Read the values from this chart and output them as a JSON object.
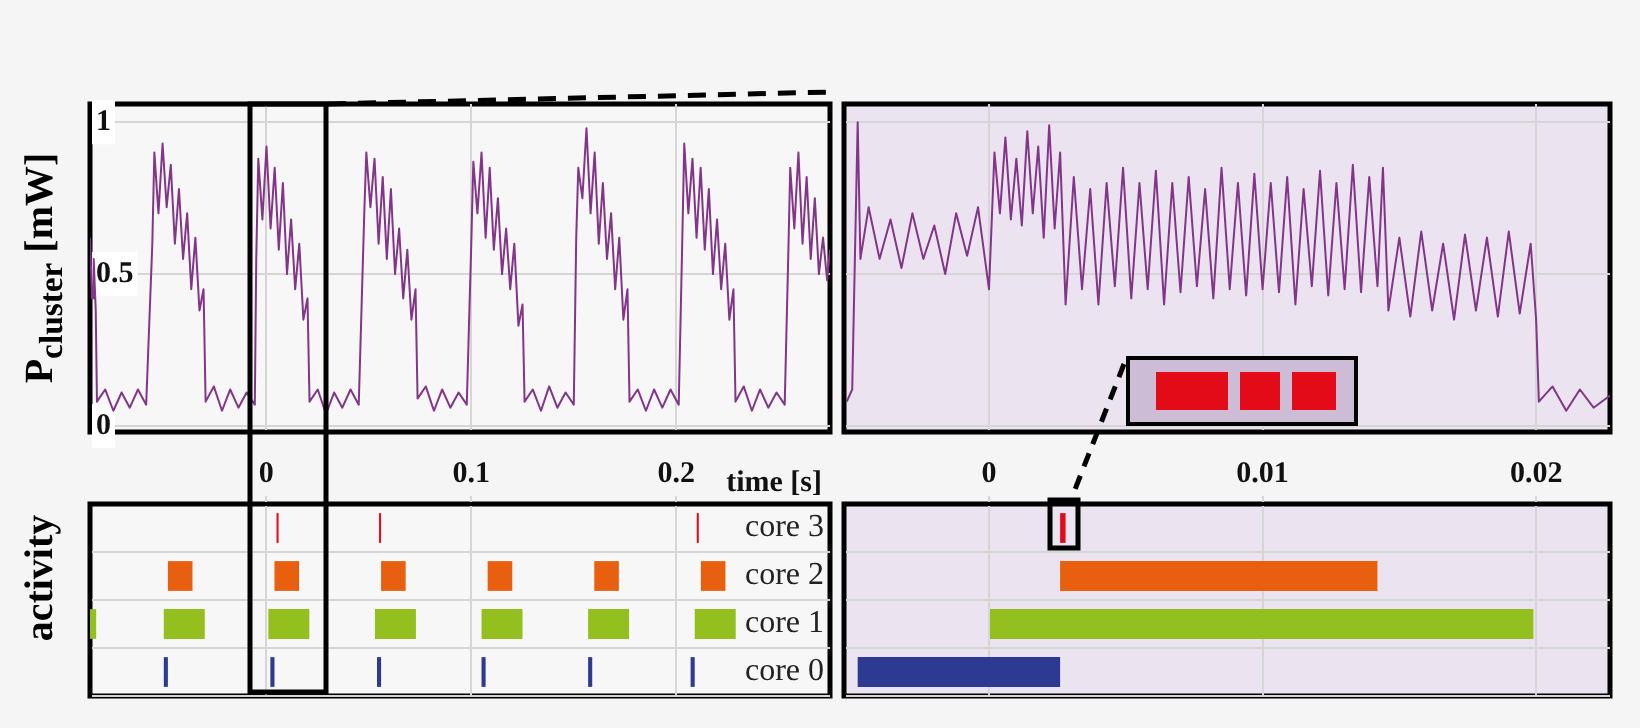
{
  "chart_data": [
    {
      "type": "line",
      "ylabel": "P$_{cluster}$ [mW]",
      "xlim": [
        -0.086,
        0.275
      ],
      "xticks": [
        0,
        0.1,
        0.2
      ],
      "ylim": [
        -0.02,
        1.06
      ],
      "yticks": [
        0,
        0.5,
        1
      ],
      "grid": true,
      "tick_labels": "y",
      "series": [
        {
          "color": "#833589",
          "x": [
            -0.086,
            -0.085,
            -0.0842,
            -0.0832,
            -0.0826,
            -0.0786,
            -0.0746,
            -0.0706,
            -0.0666,
            -0.0626,
            -0.0586,
            -0.0556,
            -0.0546,
            -0.0526,
            -0.0506,
            -0.0486,
            -0.0466,
            -0.0446,
            -0.0426,
            -0.0406,
            -0.0386,
            -0.0366,
            -0.0346,
            -0.0326,
            -0.0306,
            -0.0296,
            -0.0256,
            -0.0216,
            -0.0176,
            -0.0136,
            -0.0096,
            -0.0056,
            -0.0049,
            -0.0039,
            -0.0019,
            0.0001,
            0.0021,
            0.0041,
            0.0061,
            0.0081,
            0.0101,
            0.0121,
            0.0141,
            0.0161,
            0.0181,
            0.0201,
            0.0211,
            0.0251,
            0.0291,
            0.0331,
            0.0371,
            0.0411,
            0.0451,
            0.0478,
            0.0488,
            0.0508,
            0.0528,
            0.0548,
            0.0568,
            0.0588,
            0.0608,
            0.0628,
            0.0648,
            0.0668,
            0.0688,
            0.0708,
            0.0728,
            0.0738,
            0.0778,
            0.0818,
            0.0858,
            0.0898,
            0.0938,
            0.0978,
            0.1,
            0.101,
            0.103,
            0.105,
            0.107,
            0.109,
            0.111,
            0.113,
            0.115,
            0.117,
            0.119,
            0.121,
            0.123,
            0.125,
            0.126,
            0.13,
            0.134,
            0.138,
            0.142,
            0.146,
            0.15,
            0.1512,
            0.1522,
            0.1542,
            0.1562,
            0.1582,
            0.1602,
            0.1622,
            0.1642,
            0.1662,
            0.1682,
            0.1702,
            0.1722,
            0.1742,
            0.1762,
            0.1772,
            0.1812,
            0.1852,
            0.1892,
            0.1932,
            0.1972,
            0.2012,
            0.2029,
            0.2039,
            0.2059,
            0.2079,
            0.2099,
            0.2119,
            0.2139,
            0.2159,
            0.2179,
            0.2199,
            0.2219,
            0.2239,
            0.2259,
            0.2279,
            0.2289,
            0.2329,
            0.2369,
            0.2409,
            0.2449,
            0.2489,
            0.2529,
            0.2546,
            0.2556,
            0.2576,
            0.2596,
            0.2616,
            0.2636,
            0.2656,
            0.2676,
            0.2696,
            0.2716,
            0.2736,
            0.275
          ],
          "values": [
            0.62,
            0.42,
            0.55,
            0.38,
            0.08,
            0.12,
            0.05,
            0.11,
            0.06,
            0.12,
            0.07,
            0.6,
            0.9,
            0.7,
            0.93,
            0.72,
            0.86,
            0.6,
            0.78,
            0.55,
            0.7,
            0.45,
            0.62,
            0.38,
            0.45,
            0.08,
            0.13,
            0.05,
            0.12,
            0.06,
            0.11,
            0.07,
            0.55,
            0.88,
            0.68,
            0.92,
            0.65,
            0.85,
            0.58,
            0.8,
            0.5,
            0.68,
            0.45,
            0.6,
            0.35,
            0.42,
            0.08,
            0.12,
            0.04,
            0.11,
            0.06,
            0.12,
            0.07,
            0.7,
            0.9,
            0.72,
            0.88,
            0.6,
            0.82,
            0.55,
            0.78,
            0.5,
            0.65,
            0.42,
            0.58,
            0.35,
            0.45,
            0.09,
            0.13,
            0.05,
            0.12,
            0.06,
            0.11,
            0.07,
            0.6,
            0.87,
            0.7,
            0.9,
            0.62,
            0.85,
            0.58,
            0.75,
            0.5,
            0.65,
            0.45,
            0.6,
            0.33,
            0.4,
            0.08,
            0.12,
            0.05,
            0.13,
            0.06,
            0.11,
            0.07,
            0.62,
            0.85,
            0.75,
            0.98,
            0.7,
            0.9,
            0.6,
            0.8,
            0.55,
            0.7,
            0.45,
            0.62,
            0.35,
            0.45,
            0.08,
            0.12,
            0.05,
            0.12,
            0.06,
            0.12,
            0.07,
            0.6,
            0.93,
            0.7,
            0.88,
            0.62,
            0.85,
            0.58,
            0.78,
            0.5,
            0.68,
            0.45,
            0.6,
            0.35,
            0.45,
            0.08,
            0.13,
            0.05,
            0.12,
            0.06,
            0.11,
            0.07,
            0.55,
            0.85,
            0.65,
            0.9,
            0.6,
            0.82,
            0.55,
            0.75,
            0.5,
            0.62,
            0.48,
            0.58
          ]
        }
      ]
    },
    {
      "type": "line",
      "xlim": [
        -0.0053,
        0.0227
      ],
      "xticks": [
        0,
        0.01,
        0.02
      ],
      "ylim": [
        -0.02,
        1.06
      ],
      "yticks": [
        0,
        0.5,
        1
      ],
      "grid": true,
      "tick_labels": false,
      "series": [
        {
          "color": "#833589",
          "x": [
            -0.0052,
            -0.005,
            -0.0048,
            -0.0047,
            -0.0044,
            -0.004,
            -0.0036,
            -0.0032,
            -0.0028,
            -0.0024,
            -0.002,
            -0.0016,
            -0.0012,
            -0.0008,
            -0.0004,
            0,
            0.0002,
            0.0004,
            0.0006,
            0.0008,
            0.001,
            0.0012,
            0.0014,
            0.0016,
            0.0018,
            0.002,
            0.0022,
            0.0024,
            0.0026,
            0.0028,
            0.0031,
            0.0034,
            0.0037,
            0.004,
            0.0043,
            0.0046,
            0.0049,
            0.0052,
            0.0055,
            0.0058,
            0.0061,
            0.0064,
            0.0067,
            0.007,
            0.0073,
            0.0076,
            0.0079,
            0.0082,
            0.0085,
            0.0088,
            0.0091,
            0.0094,
            0.0097,
            0.01,
            0.0103,
            0.0106,
            0.0109,
            0.0112,
            0.0115,
            0.0118,
            0.0121,
            0.0124,
            0.0127,
            0.013,
            0.0133,
            0.0136,
            0.0139,
            0.0142,
            0.0144,
            0.0146,
            0.015,
            0.0154,
            0.0158,
            0.0162,
            0.0166,
            0.017,
            0.0174,
            0.0178,
            0.0182,
            0.0186,
            0.019,
            0.0194,
            0.0198,
            0.02,
            0.0201,
            0.0206,
            0.0211,
            0.0216,
            0.0221,
            0.0227
          ],
          "values": [
            0.08,
            0.12,
            1.0,
            0.55,
            0.72,
            0.55,
            0.68,
            0.52,
            0.7,
            0.55,
            0.66,
            0.5,
            0.7,
            0.56,
            0.72,
            0.45,
            0.9,
            0.7,
            0.95,
            0.68,
            0.88,
            0.66,
            0.97,
            0.7,
            0.92,
            0.62,
            0.99,
            0.65,
            0.9,
            0.4,
            0.82,
            0.45,
            0.78,
            0.4,
            0.8,
            0.46,
            0.85,
            0.42,
            0.8,
            0.45,
            0.84,
            0.4,
            0.8,
            0.44,
            0.82,
            0.46,
            0.78,
            0.42,
            0.85,
            0.45,
            0.8,
            0.43,
            0.83,
            0.45,
            0.8,
            0.44,
            0.82,
            0.4,
            0.78,
            0.46,
            0.84,
            0.43,
            0.8,
            0.45,
            0.86,
            0.44,
            0.82,
            0.46,
            0.85,
            0.38,
            0.62,
            0.36,
            0.64,
            0.38,
            0.6,
            0.35,
            0.63,
            0.38,
            0.62,
            0.36,
            0.64,
            0.37,
            0.6,
            0.35,
            0.08,
            0.13,
            0.05,
            0.12,
            0.06,
            0.1
          ]
        }
      ]
    },
    {
      "type": "bar",
      "orientation": "horizontal",
      "ylabel": "activity",
      "xlabel": "time [s]",
      "categories": [
        "core 3",
        "core 2",
        "core 1",
        "core 0"
      ],
      "xlim": [
        -0.086,
        0.275
      ],
      "xticks": [
        0,
        0.1,
        0.2
      ],
      "grid": true,
      "series": [
        {
          "base": [
            null,
            null,
            -0.086,
            null
          ],
          "values": [
            null,
            null,
            0.003,
            null
          ],
          "colors": [
            "#e30b17",
            "#e8600f",
            "#93c01f",
            "#2e3a92"
          ]
        },
        {
          "base": [
            null,
            -0.048,
            -0.05,
            -0.05
          ],
          "values": [
            null,
            0.012,
            0.02,
            0.002
          ],
          "colors": [
            "#e30b17",
            "#e8600f",
            "#93c01f",
            "#2e3a92"
          ]
        },
        {
          "base": [
            0.005,
            0.004,
            0.001,
            0.002
          ],
          "values": [
            0.001,
            0.012,
            0.02,
            0.002
          ],
          "colors": [
            "#e30b17",
            "#e8600f",
            "#93c01f",
            "#2e3a92"
          ]
        },
        {
          "base": [
            0.055,
            0.056,
            0.053,
            0.054
          ],
          "values": [
            0.001,
            0.012,
            0.02,
            0.002
          ],
          "colors": [
            "#e30b17",
            "#e8600f",
            "#93c01f",
            "#2e3a92"
          ]
        },
        {
          "base": [
            null,
            0.108,
            0.105,
            0.105
          ],
          "values": [
            null,
            0.012,
            0.02,
            0.002
          ],
          "colors": [
            "#e30b17",
            "#e8600f",
            "#93c01f",
            "#2e3a92"
          ]
        },
        {
          "base": [
            null,
            0.16,
            0.157,
            0.157
          ],
          "values": [
            null,
            0.012,
            0.02,
            0.002
          ],
          "colors": [
            "#e30b17",
            "#e8600f",
            "#93c01f",
            "#2e3a92"
          ]
        },
        {
          "base": [
            0.21,
            0.212,
            0.209,
            0.207
          ],
          "values": [
            0.001,
            0.012,
            0.02,
            0.002
          ],
          "colors": [
            "#e30b17",
            "#e8600f",
            "#93c01f",
            "#2e3a92"
          ]
        }
      ]
    },
    {
      "type": "bar",
      "orientation": "horizontal",
      "categories": [
        null,
        null,
        null,
        null
      ],
      "xlim": [
        -0.0053,
        0.0227
      ],
      "xticks": [
        0,
        0.01,
        0.02
      ],
      "grid": true,
      "tick_labels": "x",
      "series": [
        {
          "base": [
            0.0026,
            0.0026,
            0,
            -0.0048
          ],
          "values": [
            0.0002,
            0.0116,
            0.0199,
            0.0074
          ],
          "colors": [
            "#e30b17",
            "#e8600f",
            "#93c01f",
            "#2e3a92"
          ]
        }
      ]
    }
  ]
}
